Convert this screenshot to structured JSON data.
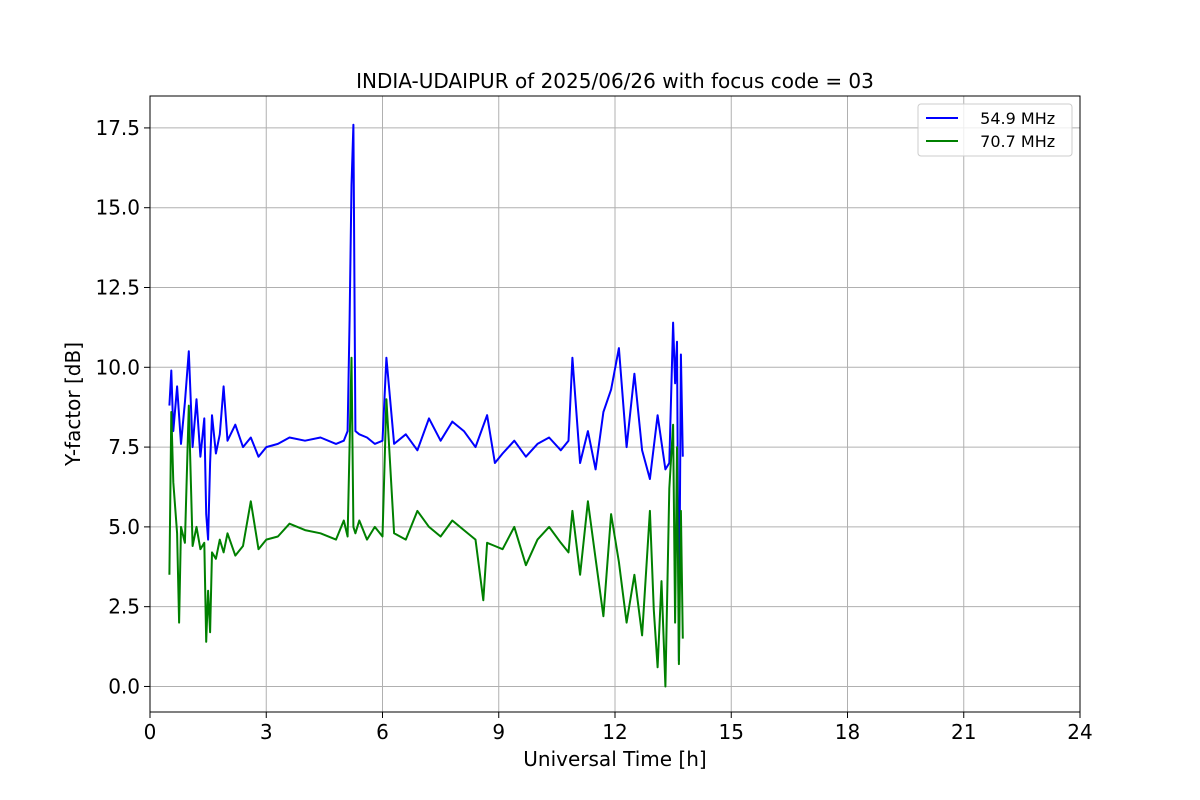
{
  "chart_data": {
    "type": "line",
    "title": "INDIA-UDAIPUR of 2025/06/26 with focus code = 03",
    "xlabel": "Universal Time [h]",
    "ylabel": "Y-factor [dB]",
    "xlim": [
      0,
      24
    ],
    "ylim": [
      -0.8,
      18.5
    ],
    "xticks": [
      0,
      3,
      6,
      9,
      12,
      15,
      18,
      21,
      24
    ],
    "xtick_labels": [
      "0",
      "3",
      "6",
      "9",
      "12",
      "15",
      "18",
      "21",
      "24"
    ],
    "yticks": [
      0,
      2.5,
      5,
      7.5,
      10,
      12.5,
      15,
      17.5
    ],
    "ytick_labels": [
      "0.0",
      "2.5",
      "5.0",
      "7.5",
      "10.0",
      "12.5",
      "15.0",
      "17.5"
    ],
    "grid": true,
    "legend_position": "top-right",
    "series": [
      {
        "name": "  54.9 MHz",
        "color": "#0000ff",
        "x": [
          0.5,
          0.55,
          0.6,
          0.7,
          0.8,
          0.9,
          1.0,
          1.1,
          1.2,
          1.3,
          1.4,
          1.45,
          1.5,
          1.55,
          1.6,
          1.7,
          1.8,
          1.9,
          2.0,
          2.2,
          2.4,
          2.6,
          2.8,
          3.0,
          3.3,
          3.6,
          4.0,
          4.4,
          4.8,
          5.0,
          5.1,
          5.15,
          5.2,
          5.25,
          5.3,
          5.4,
          5.6,
          5.8,
          6.0,
          6.1,
          6.3,
          6.6,
          6.9,
          7.2,
          7.5,
          7.8,
          8.1,
          8.4,
          8.7,
          8.9,
          9.1,
          9.4,
          9.7,
          10.0,
          10.3,
          10.6,
          10.8,
          10.9,
          11.1,
          11.3,
          11.5,
          11.7,
          11.9,
          12.1,
          12.3,
          12.5,
          12.7,
          12.9,
          13.1,
          13.3,
          13.4,
          13.5,
          13.55,
          13.6,
          13.65,
          13.7,
          13.75
        ],
        "y": [
          8.8,
          9.9,
          8.0,
          9.4,
          7.6,
          8.9,
          10.5,
          7.5,
          9.0,
          7.2,
          8.4,
          5.4,
          4.6,
          7.0,
          8.5,
          7.3,
          7.9,
          9.4,
          7.7,
          8.2,
          7.5,
          7.8,
          7.2,
          7.5,
          7.6,
          7.8,
          7.7,
          7.8,
          7.6,
          7.7,
          8.0,
          11.5,
          15.7,
          17.6,
          8.0,
          7.9,
          7.8,
          7.6,
          7.7,
          10.3,
          7.6,
          7.9,
          7.4,
          8.4,
          7.7,
          8.3,
          8.0,
          7.5,
          8.5,
          7.0,
          7.3,
          7.7,
          7.2,
          7.6,
          7.8,
          7.4,
          7.7,
          10.3,
          7.0,
          8.0,
          6.8,
          8.6,
          9.3,
          10.6,
          7.5,
          9.8,
          7.4,
          6.5,
          8.5,
          6.8,
          7.0,
          11.4,
          9.5,
          10.8,
          0.8,
          10.4,
          7.2
        ]
      },
      {
        "name": "  70.7 MHz",
        "color": "#008000",
        "x": [
          0.5,
          0.55,
          0.6,
          0.7,
          0.75,
          0.8,
          0.9,
          1.0,
          1.1,
          1.2,
          1.3,
          1.4,
          1.45,
          1.5,
          1.55,
          1.6,
          1.7,
          1.8,
          1.9,
          2.0,
          2.2,
          2.4,
          2.6,
          2.8,
          3.0,
          3.3,
          3.6,
          4.0,
          4.4,
          4.8,
          5.0,
          5.1,
          5.2,
          5.25,
          5.3,
          5.4,
          5.6,
          5.8,
          6.0,
          6.1,
          6.3,
          6.6,
          6.9,
          7.2,
          7.5,
          7.8,
          8.1,
          8.4,
          8.6,
          8.7,
          8.9,
          9.1,
          9.4,
          9.7,
          10.0,
          10.3,
          10.6,
          10.8,
          10.9,
          11.1,
          11.3,
          11.5,
          11.7,
          11.9,
          12.1,
          12.3,
          12.5,
          12.7,
          12.9,
          13.0,
          13.1,
          13.2,
          13.3,
          13.4,
          13.5,
          13.55,
          13.6,
          13.65,
          13.7,
          13.75
        ],
        "y": [
          3.5,
          8.6,
          6.4,
          4.8,
          2.0,
          5.0,
          4.5,
          8.8,
          4.4,
          5.0,
          4.3,
          4.5,
          1.4,
          3.0,
          1.7,
          4.2,
          4.0,
          4.6,
          4.2,
          4.8,
          4.1,
          4.4,
          5.8,
          4.3,
          4.6,
          4.7,
          5.1,
          4.9,
          4.8,
          4.6,
          5.2,
          4.7,
          10.3,
          5.0,
          4.8,
          5.2,
          4.6,
          5.0,
          4.7,
          9.0,
          4.8,
          4.6,
          5.5,
          5.0,
          4.7,
          5.2,
          4.9,
          4.6,
          2.7,
          4.5,
          4.4,
          4.3,
          5.0,
          3.8,
          4.6,
          5.0,
          4.5,
          4.2,
          5.5,
          3.5,
          5.8,
          4.0,
          2.2,
          5.4,
          3.9,
          2.0,
          3.5,
          1.6,
          5.5,
          2.4,
          0.6,
          3.3,
          0.0,
          6.2,
          8.2,
          2.0,
          7.5,
          0.7,
          5.5,
          1.5
        ]
      }
    ]
  }
}
